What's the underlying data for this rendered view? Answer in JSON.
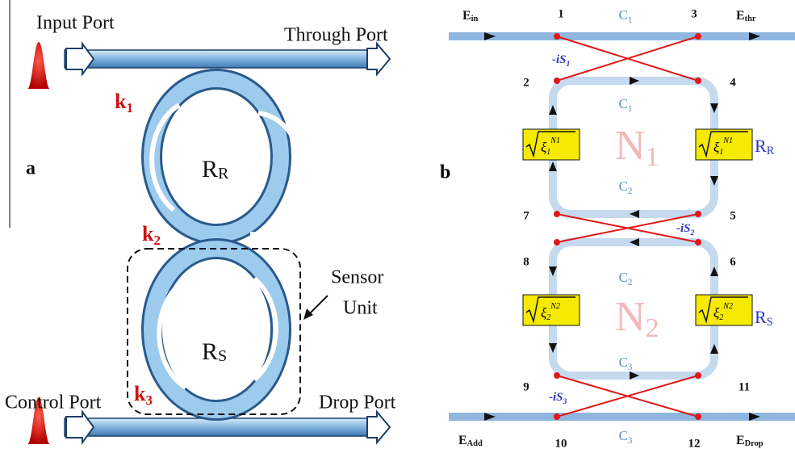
{
  "panel_a": {
    "label": "a",
    "input_port": "Input Port",
    "through_port": "Through Port",
    "control_port": "Control Port",
    "drop_port": "Drop Port",
    "sensor_unit": [
      "Sensor",
      "Unit"
    ],
    "couplers": [
      {
        "base": "k",
        "sub": "1"
      },
      {
        "base": "k",
        "sub": "2"
      },
      {
        "base": "k",
        "sub": "3"
      }
    ],
    "rings": [
      {
        "base": "R",
        "sub": "R"
      },
      {
        "base": "R",
        "sub": "S"
      }
    ]
  },
  "panel_b": {
    "label": "b",
    "ports": [
      {
        "base": "E",
        "sub": "in"
      },
      {
        "base": "E",
        "sub": "thr"
      },
      {
        "base": "E",
        "sub": "Add"
      },
      {
        "base": "E",
        "sub": "Drop"
      }
    ],
    "nodes": [
      "1",
      "3",
      "2",
      "4",
      "7",
      "5",
      "8",
      "6",
      "9",
      "11",
      "10",
      "12"
    ],
    "couplings": [
      {
        "base": "C",
        "sub": "1"
      },
      {
        "base": "C",
        "sub": "1"
      },
      {
        "base": "C",
        "sub": "2"
      },
      {
        "base": "C",
        "sub": "2"
      },
      {
        "base": "C",
        "sub": "3"
      },
      {
        "base": "C",
        "sub": "3"
      }
    ],
    "phase_shifts": [
      {
        "base": "-iS",
        "sub": "1"
      },
      {
        "base": "-iS",
        "sub": "2"
      },
      {
        "base": "-iS",
        "sub": "3"
      }
    ],
    "loops": [
      {
        "base": "N",
        "sub": "1"
      },
      {
        "base": "N",
        "sub": "2"
      }
    ],
    "attenuations": [
      {
        "base": "ξ",
        "sub": "1",
        "sup": "N1"
      },
      {
        "base": "ξ",
        "sub": "2",
        "sup": "N2"
      }
    ],
    "rings": [
      {
        "base": "R",
        "sub": "R"
      },
      {
        "base": "R",
        "sub": "S"
      }
    ]
  }
}
